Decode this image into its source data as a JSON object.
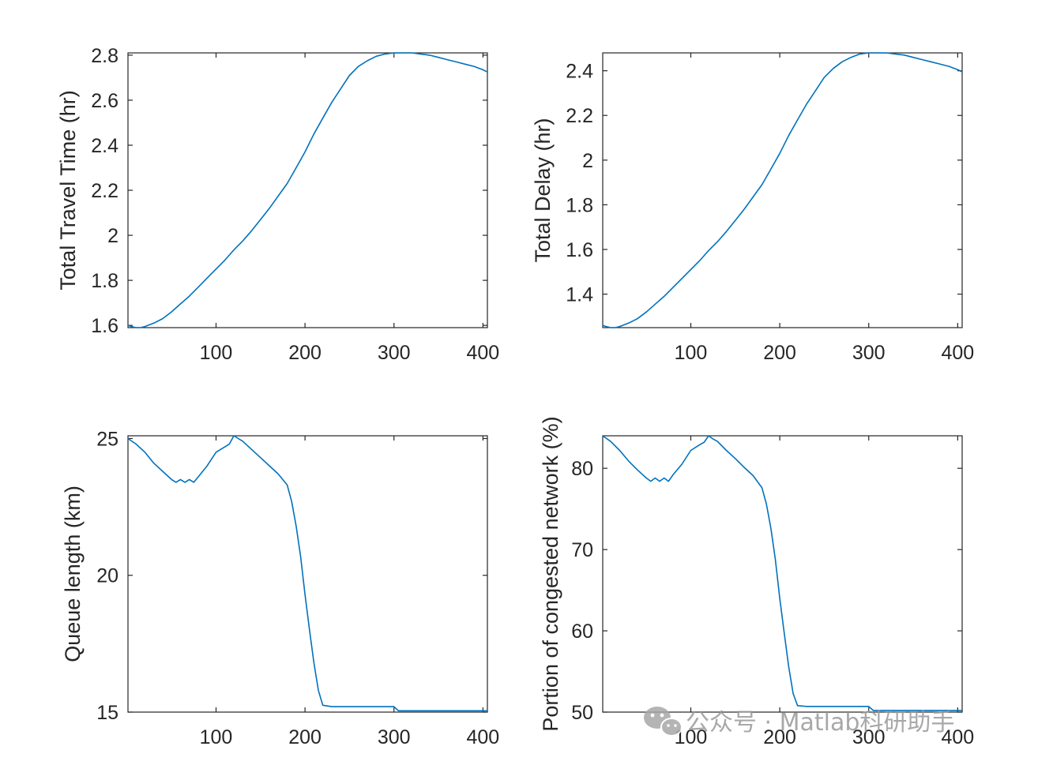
{
  "chart_data": [
    {
      "type": "line",
      "ylabel": "Total Travel Time (hr)",
      "xlabel": "",
      "xlim": [
        1,
        405
      ],
      "ylim": [
        1.59,
        2.81
      ],
      "xticks": [
        100,
        200,
        300,
        400
      ],
      "yticks": [
        1.6,
        1.8,
        2,
        2.2,
        2.4,
        2.6,
        2.8
      ],
      "ytick_labels": [
        "1.6",
        "1.8",
        "2",
        "2.2",
        "2.4",
        "2.6",
        "2.8"
      ],
      "grid": false,
      "series_color": "#0072BD",
      "series": [
        {
          "x": [
            1,
            5,
            10,
            15,
            20,
            30,
            40,
            50,
            60,
            70,
            80,
            90,
            100,
            110,
            120,
            130,
            140,
            150,
            160,
            170,
            180,
            190,
            200,
            210,
            220,
            230,
            240,
            250,
            260,
            270,
            280,
            290,
            300,
            310,
            320,
            330,
            340,
            350,
            360,
            370,
            380,
            390,
            400,
            405
          ],
          "y": [
            1.6,
            1.595,
            1.59,
            1.59,
            1.595,
            1.61,
            1.63,
            1.66,
            1.695,
            1.73,
            1.77,
            1.81,
            1.85,
            1.89,
            1.935,
            1.975,
            2.02,
            2.07,
            2.12,
            2.175,
            2.23,
            2.3,
            2.37,
            2.45,
            2.52,
            2.59,
            2.65,
            2.71,
            2.75,
            2.775,
            2.795,
            2.805,
            2.81,
            2.81,
            2.81,
            2.805,
            2.8,
            2.79,
            2.78,
            2.77,
            2.76,
            2.75,
            2.735,
            2.725
          ]
        }
      ]
    },
    {
      "type": "line",
      "ylabel": "Total Delay (hr)",
      "xlabel": "",
      "xlim": [
        1,
        405
      ],
      "ylim": [
        1.25,
        2.48
      ],
      "xticks": [
        100,
        200,
        300,
        400
      ],
      "yticks": [
        1.4,
        1.6,
        1.8,
        2,
        2.2,
        2.4
      ],
      "ytick_labels": [
        "1.4",
        "1.6",
        "1.8",
        "2",
        "2.2",
        "2.4"
      ],
      "grid": false,
      "series_color": "#0072BD",
      "series": [
        {
          "x": [
            1,
            5,
            10,
            15,
            20,
            30,
            40,
            50,
            60,
            70,
            80,
            90,
            100,
            110,
            120,
            130,
            140,
            150,
            160,
            170,
            180,
            190,
            200,
            210,
            220,
            230,
            240,
            250,
            260,
            270,
            280,
            290,
            300,
            310,
            320,
            330,
            340,
            350,
            360,
            370,
            380,
            390,
            400,
            405
          ],
          "y": [
            1.26,
            1.255,
            1.25,
            1.25,
            1.255,
            1.27,
            1.29,
            1.32,
            1.355,
            1.39,
            1.43,
            1.47,
            1.51,
            1.55,
            1.595,
            1.635,
            1.68,
            1.73,
            1.78,
            1.835,
            1.89,
            1.96,
            2.03,
            2.11,
            2.18,
            2.25,
            2.31,
            2.37,
            2.41,
            2.44,
            2.46,
            2.475,
            2.48,
            2.48,
            2.48,
            2.475,
            2.47,
            2.46,
            2.45,
            2.44,
            2.43,
            2.42,
            2.405,
            2.395
          ]
        }
      ]
    },
    {
      "type": "line",
      "ylabel": "Queue length (km)",
      "xlabel": "",
      "xlim": [
        1,
        405
      ],
      "ylim": [
        15,
        25.1
      ],
      "xticks": [
        100,
        200,
        300,
        400
      ],
      "yticks": [
        15,
        20,
        25
      ],
      "ytick_labels": [
        "15",
        "20",
        "25"
      ],
      "grid": false,
      "series_color": "#0072BD",
      "series": [
        {
          "x": [
            1,
            10,
            20,
            30,
            40,
            50,
            55,
            60,
            65,
            70,
            75,
            80,
            90,
            100,
            110,
            115,
            120,
            125,
            130,
            140,
            150,
            160,
            170,
            180,
            185,
            190,
            195,
            200,
            205,
            210,
            215,
            220,
            230,
            250,
            280,
            300,
            305,
            320,
            350,
            380,
            405
          ],
          "y": [
            25.0,
            24.8,
            24.5,
            24.1,
            23.8,
            23.5,
            23.4,
            23.5,
            23.4,
            23.5,
            23.4,
            23.6,
            24.0,
            24.5,
            24.7,
            24.8,
            25.1,
            25.0,
            24.9,
            24.6,
            24.3,
            24.0,
            23.7,
            23.3,
            22.7,
            21.8,
            20.7,
            19.3,
            18.0,
            16.8,
            15.8,
            15.25,
            15.2,
            15.2,
            15.2,
            15.2,
            15.05,
            15.05,
            15.05,
            15.05,
            15.05
          ]
        }
      ]
    },
    {
      "type": "line",
      "ylabel": "Portion of congested network (%)",
      "xlabel": "",
      "xlim": [
        1,
        405
      ],
      "ylim": [
        50,
        84
      ],
      "xticks": [
        100,
        200,
        300,
        400
      ],
      "yticks": [
        50,
        60,
        70,
        80
      ],
      "ytick_labels": [
        "50",
        "60",
        "70",
        "80"
      ],
      "grid": false,
      "series_color": "#0072BD",
      "series": [
        {
          "x": [
            1,
            10,
            20,
            30,
            40,
            50,
            55,
            60,
            65,
            70,
            75,
            80,
            90,
            100,
            110,
            115,
            120,
            125,
            130,
            140,
            150,
            160,
            170,
            180,
            185,
            190,
            195,
            200,
            205,
            210,
            215,
            220,
            230,
            250,
            280,
            300,
            305,
            320,
            350,
            380,
            405
          ],
          "y": [
            84.0,
            83.3,
            82.2,
            80.9,
            79.8,
            78.8,
            78.4,
            78.8,
            78.4,
            78.8,
            78.4,
            79.2,
            80.5,
            82.2,
            82.9,
            83.2,
            84.0,
            83.6,
            83.3,
            82.2,
            81.2,
            80.1,
            79.1,
            77.6,
            75.6,
            72.6,
            68.8,
            64.0,
            59.7,
            55.6,
            52.3,
            50.8,
            50.7,
            50.7,
            50.7,
            50.7,
            50.2,
            50.2,
            50.2,
            50.2,
            50.2
          ]
        }
      ]
    }
  ],
  "watermark": {
    "text": "公众号 · Matlab科研助手",
    "icon": "wechat-icon"
  }
}
